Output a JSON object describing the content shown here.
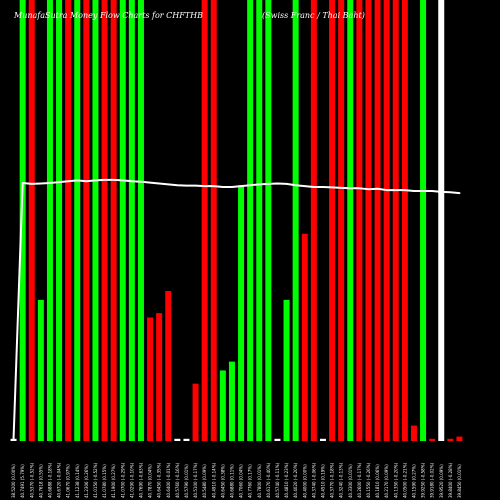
{
  "chart_data": {
    "type": "bar",
    "title_left": "MunafaSutra Money Flow Charts for CHFTHB",
    "title_right": "(Swiss Franc / Thai Baht)",
    "colors": {
      "background": "#000000",
      "up": "#00ff00",
      "down": "#ff0000",
      "neutral": "#ffffff",
      "line": "#ffffff",
      "text": "#ffffff"
    },
    "ylim": [
      0,
      100
    ],
    "line_ylim": [
      0,
      100
    ],
    "categories": [
      "38.5200 (0.00%)",
      "40.7491 (5.79%)",
      "40.5370 (-0.52%)",
      "40.7618 (0.55%)",
      "40.6888 (-0.18%)",
      "40.6720 (-0.04%)",
      "41.0670 (0.97%)",
      "41.1238 (0.14%)",
      "41.2306 (0.26%)",
      "41.0150 (-0.52%)",
      "41.0780 (0.15%)",
      "41.1900 (0.27%)",
      "41.0700 (-0.29%)",
      "41.0290 (-0.10%)",
      "40.7690 (-0.63%)",
      "40.7870 (0.04%)",
      "40.6450 (-0.35%)",
      "40.6400 (-0.01%)",
      "40.5760 (-0.16%)",
      "40.5790 (0.01%)",
      "40.5100 (-0.17%)",
      "40.5480 (0.09%)",
      "40.4910 (-0.14%)",
      "40.6450 (0.38%)",
      "40.6880 (0.11%)",
      "40.7060 (0.04%)",
      "40.7760 (0.17%)",
      "40.7800 (0.01%)",
      "40.6170 (-0.40%)",
      "40.5740 (-0.11%)",
      "40.4810 (-0.23%)",
      "40.4020 (-0.20%)",
      "40.4000 (0.00%)",
      "40.3740 (-0.06%)",
      "40.4510 (0.19%)",
      "40.3770 (-0.18%)",
      "40.3240 (-0.13%)",
      "40.3300 (0.01%)",
      "40.2600 (-0.17%)",
      "40.1550 (-0.26%)",
      "40.1810 (0.06%)",
      "40.2170 (0.09%)",
      "40.1350 (-0.20%)",
      "40.0500 (-0.21%)",
      "40.1590 (0.27%)",
      "39.9250 (-0.58%)",
      "39.9180 (-0.02%)",
      "39.9520 (0.09%)",
      "39.8400 (-0.28%)",
      "39.8450 (0.01%)"
    ],
    "bar_dirs": [
      "neutral",
      "up",
      "down",
      "up",
      "up",
      "up",
      "down",
      "up",
      "down",
      "up",
      "down",
      "down",
      "up",
      "up",
      "up",
      "down",
      "down",
      "down",
      "neutral",
      "neutral",
      "down",
      "down",
      "down",
      "up",
      "up",
      "up",
      "up",
      "up",
      "up",
      "neutral",
      "up",
      "up",
      "down",
      "down",
      "neutral",
      "down",
      "down",
      "up",
      "down",
      "down",
      "down",
      "down",
      "down",
      "down",
      "down",
      "up",
      "down",
      "neutral",
      "down",
      "down"
    ],
    "values": [
      0.5,
      100,
      100,
      32,
      100,
      100,
      100,
      100,
      100,
      100,
      100,
      100,
      100,
      100,
      100,
      28,
      29,
      34,
      0.5,
      0.5,
      13,
      100,
      100,
      16,
      18,
      58,
      100,
      100,
      100,
      0.5,
      32,
      100,
      47,
      100,
      0.5,
      100,
      100,
      100,
      100,
      100,
      100,
      100,
      100,
      100,
      3.5,
      100,
      0.5,
      100,
      0.5,
      1
    ],
    "line_values": [
      0.5,
      58.5,
      58.3,
      58.4,
      58.5,
      58.7,
      58.9,
      59.1,
      58.9,
      59.1,
      59.2,
      59.2,
      59.1,
      58.9,
      58.8,
      58.6,
      58.4,
      58.2,
      58.0,
      57.9,
      57.9,
      57.8,
      57.8,
      57.6,
      57.6,
      57.8,
      58.0,
      58.2,
      58.3,
      58.4,
      58.3,
      58.0,
      57.8,
      57.6,
      57.6,
      57.5,
      57.4,
      57.3,
      57.3,
      57.1,
      57.2,
      56.9,
      56.9,
      56.9,
      56.7,
      56.7,
      56.7,
      56.5,
      56.4,
      56.2
    ]
  }
}
